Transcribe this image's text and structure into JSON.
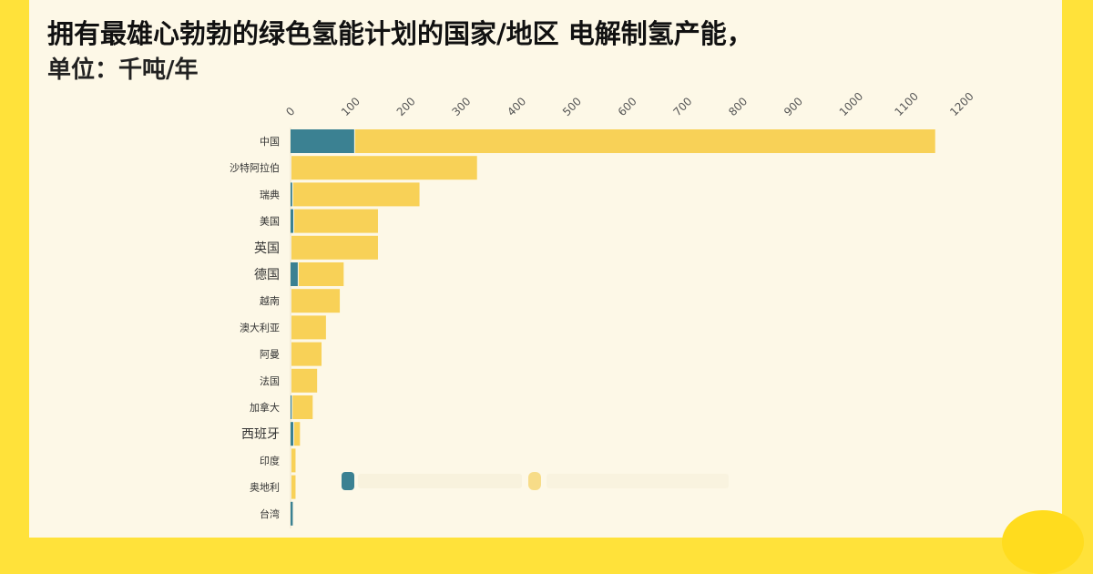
{
  "title": "拥有最雄心勃勃的绿色氢能计划的国家/地区 电解制氢产能，",
  "subtitle": "单位：千吨/年",
  "colors": {
    "series_a": "#3B8192",
    "series_b": "#F8D157",
    "background": "#FDF8E7",
    "frame": "#FFE23A"
  },
  "chart_data": {
    "type": "bar",
    "orientation": "horizontal",
    "stacked": true,
    "title": "拥有最雄心勃勃的绿色氢能计划的国家/地区 电解制氢产能，",
    "subtitle": "单位：千吨/年",
    "xlim": [
      0,
      1200
    ],
    "xticks": [
      "0",
      "100",
      "200",
      "300",
      "400",
      "500",
      "600",
      "700",
      "800",
      "900",
      "1000",
      "1100",
      "1200"
    ],
    "categories": [
      "中国",
      "沙特阿拉伯",
      "瑞典",
      "美国",
      "英国",
      "德国",
      "越南",
      "澳大利亚",
      "阿曼",
      "法国",
      "加拿大",
      "西班牙",
      "印度",
      "奥地利",
      "台湾"
    ],
    "big_labels": [
      "英国",
      "德国",
      "西班牙"
    ],
    "series": [
      {
        "values": [
          115,
          0,
          3,
          5,
          0,
          13,
          0,
          0,
          0,
          0,
          2,
          5,
          0,
          0,
          4
        ]
      },
      {
        "values": [
          1050,
          337,
          230,
          153,
          158,
          83,
          89,
          64,
          56,
          48,
          38,
          12,
          9,
          9,
          0
        ]
      }
    ],
    "grid": false,
    "legend": "bottom-center"
  }
}
